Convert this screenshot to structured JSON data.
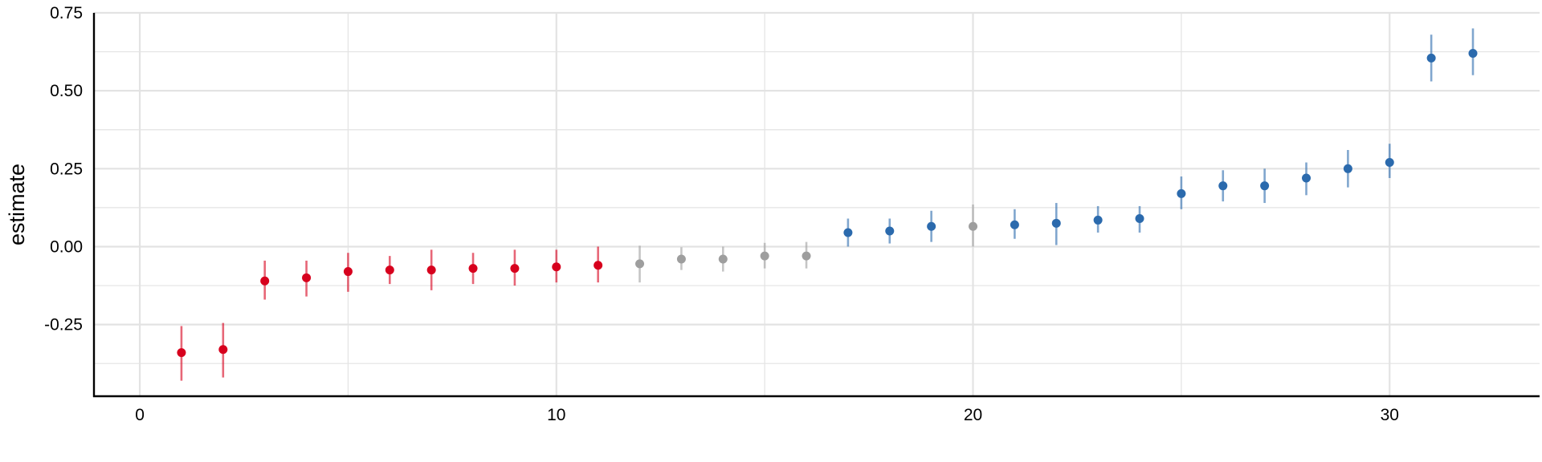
{
  "chart_data": {
    "type": "scatter",
    "title": "",
    "xlabel": "",
    "ylabel": "estimate",
    "xlim": [
      -1.1,
      33.6
    ],
    "ylim": [
      -0.48,
      0.75
    ],
    "x_ticks": [
      0,
      10,
      20,
      30
    ],
    "x_tick_labels": [
      "0",
      "10",
      "20",
      "30"
    ],
    "y_ticks": [
      -0.25,
      0.0,
      0.25,
      0.5,
      0.75
    ],
    "y_tick_labels": [
      "-0.25",
      "0.00",
      "0.25",
      "0.50",
      "0.75"
    ],
    "grid": true,
    "legend": "none",
    "colors": {
      "negative": "#d7001d",
      "neutral": "#9e9e9e",
      "positive": "#2b6aad",
      "axis": "#000000",
      "grid": "#e3e3e3"
    },
    "series": [
      {
        "color_key": "negative",
        "x": [
          1,
          2,
          3,
          4,
          5,
          6,
          7,
          8,
          9,
          10,
          11
        ],
        "estimate": [
          -0.34,
          -0.33,
          -0.11,
          -0.1,
          -0.08,
          -0.075,
          -0.075,
          -0.07,
          -0.07,
          -0.065,
          -0.06
        ],
        "lower": [
          -0.43,
          -0.42,
          -0.17,
          -0.16,
          -0.145,
          -0.12,
          -0.14,
          -0.12,
          -0.125,
          -0.115,
          -0.115
        ],
        "upper": [
          -0.255,
          -0.245,
          -0.045,
          -0.045,
          -0.02,
          -0.03,
          -0.01,
          -0.02,
          -0.01,
          -0.01,
          0.0
        ]
      },
      {
        "color_key": "neutral",
        "x": [
          12,
          13,
          14,
          15,
          16
        ],
        "estimate": [
          -0.055,
          -0.04,
          -0.04,
          -0.03,
          -0.03
        ],
        "lower": [
          -0.115,
          -0.075,
          -0.08,
          -0.07,
          -0.07
        ],
        "upper": [
          0.003,
          -0.002,
          0.0,
          0.012,
          0.015
        ]
      },
      {
        "color_key": "positive",
        "x": [
          17,
          18,
          19
        ],
        "estimate": [
          0.045,
          0.05,
          0.065
        ],
        "lower": [
          0.0,
          0.01,
          0.015
        ],
        "upper": [
          0.09,
          0.09,
          0.115
        ]
      },
      {
        "color_key": "neutral",
        "x": [
          20
        ],
        "estimate": [
          0.065
        ],
        "lower": [
          0.0
        ],
        "upper": [
          0.135
        ]
      },
      {
        "color_key": "positive",
        "x": [
          21,
          22,
          23,
          24,
          25,
          26,
          27,
          28,
          29,
          30,
          31,
          32
        ],
        "estimate": [
          0.07,
          0.075,
          0.085,
          0.09,
          0.17,
          0.195,
          0.195,
          0.22,
          0.25,
          0.27,
          0.605,
          0.62
        ],
        "lower": [
          0.025,
          0.005,
          0.045,
          0.045,
          0.12,
          0.145,
          0.14,
          0.165,
          0.19,
          0.22,
          0.53,
          0.55
        ],
        "upper": [
          0.12,
          0.14,
          0.13,
          0.13,
          0.225,
          0.245,
          0.25,
          0.27,
          0.31,
          0.33,
          0.68,
          0.7
        ]
      }
    ]
  }
}
